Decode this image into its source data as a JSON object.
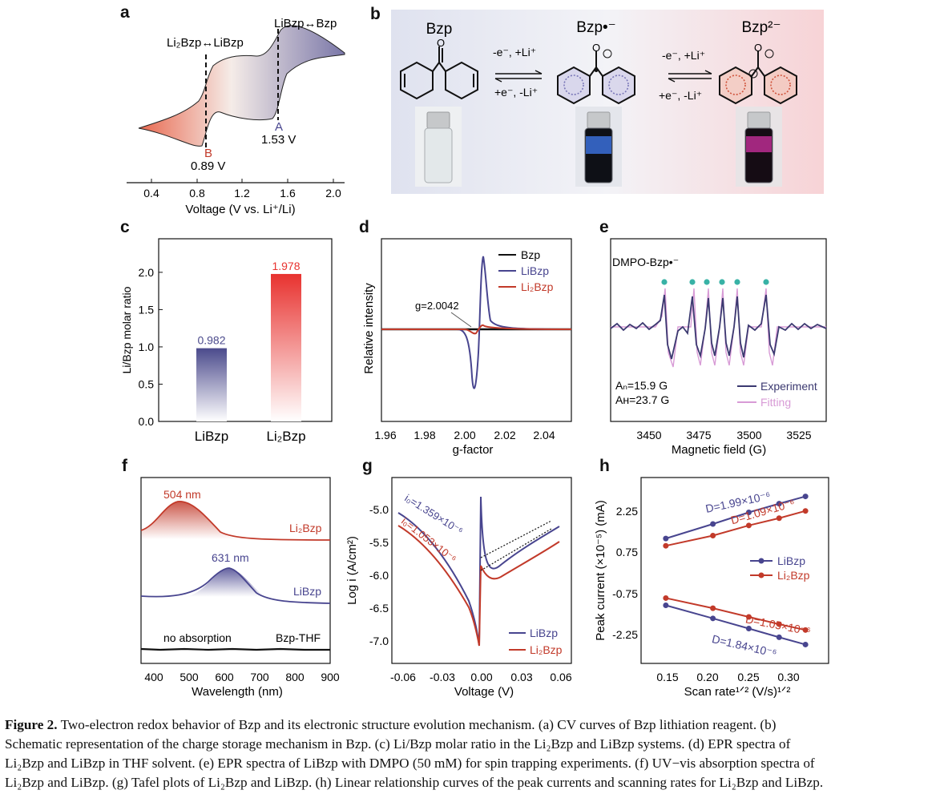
{
  "panel_labels": [
    "a",
    "b",
    "c",
    "d",
    "e",
    "f",
    "g",
    "h"
  ],
  "panel_a": {
    "xlabel": "Voltage (V vs. Li⁺/Li)",
    "ticks": [
      "0.4",
      "0.8",
      "1.2",
      "1.6",
      "2.0"
    ],
    "label_high": "LiBzp↔Bzp",
    "label_low": "Li₂Bzp↔LiBzp",
    "peak_A": "A",
    "peak_A_value": "1.53 V",
    "peak_B": "B",
    "peak_B_value": "0.89 V"
  },
  "panel_b": {
    "species": [
      "Bzp",
      "Bzp•⁻",
      "Bzp²⁻"
    ],
    "arrow1_top": "-e⁻, +Li⁺",
    "arrow1_bottom": "+e⁻, -Li⁺",
    "arrow2_top": "-e⁻, +Li⁺",
    "arrow2_bottom": "+e⁻, -Li⁺",
    "vial_colors": [
      "#d8dde0",
      "#3a6fd8",
      "#b02a8a"
    ]
  },
  "panel_c": {
    "ylabel": "Li/Bzp molar ratio",
    "yticks": [
      "0.0",
      "0.5",
      "1.0",
      "1.5",
      "2.0"
    ],
    "chart_data": {
      "type": "bar",
      "categories": [
        "LiBzp",
        "Li₂Bzp"
      ],
      "values": [
        0.982,
        1.978
      ],
      "value_labels": [
        "0.982",
        "1.978"
      ],
      "ylabel": "Li/Bzp molar ratio",
      "ylim": [
        0,
        2.45
      ],
      "colors": [
        "#4b4a8c",
        "#e8322f"
      ]
    }
  },
  "panel_d": {
    "xlabel": "g-factor",
    "ylabel": "Relative intensity",
    "xticks": [
      "1.96",
      "1.98",
      "2.00",
      "2.02",
      "2.04"
    ],
    "annotation": "g=2.0042",
    "legend": [
      "Bzp",
      "LiBzp",
      "Li₂Bzp"
    ],
    "colors": [
      "#111111",
      "#48458f",
      "#c23a2a"
    ]
  },
  "panel_e": {
    "title": "DMPO-Bzp•⁻",
    "xlabel": "Magnetic field (G)",
    "xticks": [
      "3450",
      "3475",
      "3500",
      "3525"
    ],
    "param_n": "Aₙ=15.9 G",
    "param_h": "Aʜ=23.7 G",
    "legend": [
      "Experiment",
      "Fitting"
    ],
    "colors": [
      "#3b3970",
      "#d89bd6"
    ]
  },
  "panel_f": {
    "xlabel": "Wavelength (nm)",
    "xticks": [
      "400",
      "500",
      "600",
      "700",
      "800",
      "900"
    ],
    "peak1": "504 nm",
    "peak2": "631 nm",
    "trace_labels": [
      "Li₂Bzp",
      "LiBzp",
      "Bzp-THF"
    ],
    "no_abs": "no absorption",
    "colors": [
      "#c23a2a",
      "#48458f",
      "#111111"
    ]
  },
  "panel_g": {
    "xlabel": "Voltage (V)",
    "ylabel": "Log i (A/cm²)",
    "xticks": [
      "-0.06",
      "-0.03",
      "0.00",
      "0.03",
      "0.06"
    ],
    "yticks": [
      "-5.0",
      "-5.5",
      "-6.0",
      "-6.5",
      "-7.0"
    ],
    "i0_libzp": "i₀=1.359×10⁻⁶",
    "i0_li2bzp": "i₀=1.053×10⁻⁶",
    "legend": [
      "LiBzp",
      "Li₂Bzp"
    ],
    "colors": [
      "#48458f",
      "#c23a2a"
    ]
  },
  "panel_h": {
    "xlabel": "Scan rate¹ᐟ² (V/s)¹ᐟ²",
    "ylabel": "Peak current (×10⁻⁵) (mA)",
    "xticks": [
      "0.15",
      "0.20",
      "0.25",
      "0.30"
    ],
    "yticks": [
      "2.25",
      "0.75",
      "-0.75",
      "-2.25"
    ],
    "legend": [
      "LiBzp",
      "Li₂Bzp"
    ],
    "colors": [
      "#48458f",
      "#c23a2a"
    ],
    "chart_data": {
      "type": "line",
      "x": [
        0.141,
        0.2,
        0.245,
        0.283,
        0.316
      ],
      "series": [
        {
          "name": "LiBzp anodic",
          "values": [
            1.1,
            1.6,
            2.0,
            2.3,
            2.55
          ],
          "label": "D=1.99×10⁻⁶"
        },
        {
          "name": "Li₂Bzp anodic",
          "values": [
            0.85,
            1.2,
            1.55,
            1.8,
            2.05
          ],
          "label": "D=1.09×10⁻⁶"
        },
        {
          "name": "Li₂Bzp cathodic",
          "values": [
            -0.95,
            -1.3,
            -1.6,
            -1.85,
            -2.05
          ],
          "label": "D=1.05×10⁻⁶"
        },
        {
          "name": "LiBzp cathodic",
          "values": [
            -1.2,
            -1.65,
            -2.0,
            -2.3,
            -2.55
          ],
          "label": "D=1.84×10⁻⁶"
        }
      ],
      "xlabel": "Scan rate¹ᐟ² (V/s)¹ᐟ²",
      "ylabel": "Peak current (×10⁻⁵) (mA)",
      "ylim": [
        -3.2,
        3.2
      ]
    }
  },
  "caption": {
    "lead": "Figure 2.",
    "line1": "Two-electron redox behavior of Bzp and its electronic structure evolution mechanism. (a) CV curves of Bzp lithiation reagent. (b)",
    "line2": "Schematic representation of the charge storage mechanism in Bzp. (c) Li/Bzp molar ratio in the Li₂Bzp and LiBzp systems. (d) EPR spectra of",
    "line3": "Li₂Bzp and LiBzp in THF solvent. (e) EPR spectra of LiBzp with DMPO (50 mM) for spin trapping experiments. (f) UV−vis absorption spectra of",
    "line4": "Li₂Bzp and LiBzp. (g) Tafel plots of Li₂Bzp and LiBzp. (h) Linear relationship curves of the peak currents and scanning rates for Li₂Bzp and LiBzp."
  }
}
